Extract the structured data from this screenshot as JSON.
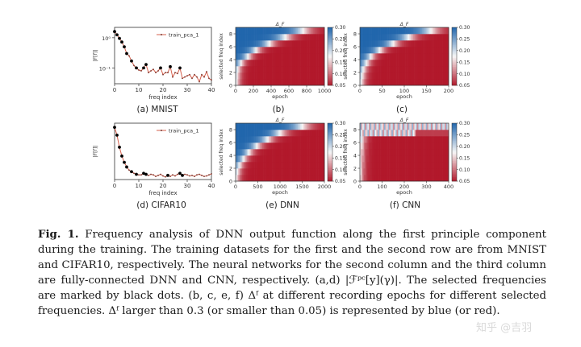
{
  "figure": {
    "colormap": {
      "low": "#b2182b",
      "mid": "#f7f7f7",
      "high": "#2166ac"
    },
    "line_color": "#d6604d",
    "marker_color": "#000000"
  },
  "captions": {
    "a": "(a) MNIST",
    "b": "(b)",
    "c": "(c)",
    "d": "(d) CIFAR10",
    "e": "(e) DNN",
    "f": "(f) CNN"
  },
  "caption_text": {
    "label": "Fig. 1.",
    "body": "Frequency analysis of DNN output function along the first principle component during the training. The training datasets for the first and the second row are from MNIST and CIFAR10, respectively. The neural networks for the second column and the third column are fully-connected DNN and CNN, respectively. (a,d) |ℱᵖᶜ[y](γ)|. The selected frequencies are marked by black dots. (b, c, e, f) Δᶠ at different recording epochs for different selected frequencies. Δᶠ larger than 0.3 (or smaller than 0.05) is represented by blue (or red)."
  },
  "watermark": "知乎 @吉羽",
  "chart_data": [
    {
      "id": "a",
      "type": "line",
      "xlabel": "freq index",
      "ylabel": "|F[f]|",
      "xlim": [
        0,
        40
      ],
      "xticks": [
        "0",
        "10",
        "20",
        "30",
        "40"
      ],
      "yscale": "log",
      "yticks": [
        "10⁰",
        "10⁻¹"
      ],
      "legend": "train_pca_1",
      "legend_position": "top-right",
      "x": [
        0,
        1,
        2,
        3,
        4,
        5,
        6,
        7,
        8,
        9,
        10,
        11,
        12,
        13,
        14,
        15,
        16,
        17,
        18,
        19,
        20,
        21,
        22,
        23,
        24,
        25,
        26,
        27,
        28,
        29,
        30,
        31,
        32,
        33,
        34,
        35,
        36,
        37,
        38,
        39,
        40
      ],
      "series": [
        {
          "name": "train_pca_1",
          "values": [
            1.6,
            1.25,
            0.95,
            0.72,
            0.5,
            0.3,
            0.25,
            0.17,
            0.12,
            0.1,
            0.085,
            0.08,
            0.1,
            0.13,
            0.07,
            0.08,
            0.09,
            0.07,
            0.08,
            0.1,
            0.06,
            0.07,
            0.07,
            0.11,
            0.05,
            0.07,
            0.065,
            0.1,
            0.045,
            0.05,
            0.055,
            0.06,
            0.045,
            0.06,
            0.05,
            0.035,
            0.06,
            0.05,
            0.075,
            0.045,
            0.04
          ]
        }
      ],
      "marked_x": [
        0,
        1,
        2,
        3,
        4,
        5,
        7,
        9,
        12,
        13,
        19,
        23,
        27
      ]
    },
    {
      "id": "b",
      "type": "heatmap",
      "title": "Δ_F",
      "xlabel": "epoch",
      "ylabel": "selected freq index",
      "xticks": [
        "0",
        "200",
        "400",
        "600",
        "800",
        "1000"
      ],
      "xlim": [
        0,
        1000
      ],
      "yticks": [
        "0",
        "2",
        "4",
        "6",
        "8"
      ],
      "ylim": [
        0,
        9
      ],
      "colorbar_ticks": [
        "0.05",
        "0.10",
        "0.15",
        "0.20",
        "0.25",
        "0.30"
      ],
      "clim": [
        0.05,
        0.3
      ],
      "rows": 9,
      "transition_epoch": [
        10,
        15,
        25,
        60,
        140,
        230,
        380,
        560,
        760
      ]
    },
    {
      "id": "c",
      "type": "heatmap",
      "title": "Δ_F",
      "xlabel": "epoch",
      "ylabel": "selected freq index",
      "xticks": [
        "0",
        "50",
        "100",
        "150",
        "200"
      ],
      "xlim": [
        0,
        200
      ],
      "yticks": [
        "0",
        "2",
        "4",
        "6",
        "8"
      ],
      "ylim": [
        0,
        9
      ],
      "colorbar_ticks": [
        "0.05",
        "0.10",
        "0.15",
        "0.20",
        "0.25",
        "0.30"
      ],
      "clim": [
        0.05,
        0.3
      ],
      "rows": 9,
      "transition_epoch": [
        3,
        5,
        8,
        15,
        25,
        45,
        75,
        110,
        160
      ]
    },
    {
      "id": "d",
      "type": "line",
      "xlabel": "freq index",
      "ylabel": "|F[f]|",
      "xlim": [
        0,
        40
      ],
      "xticks": [
        "0",
        "10",
        "20",
        "30",
        "40"
      ],
      "yscale": "linear",
      "legend": "train_pca_1",
      "legend_position": "top-right",
      "x": [
        0,
        1,
        2,
        3,
        4,
        5,
        6,
        7,
        8,
        9,
        10,
        11,
        12,
        13,
        14,
        15,
        16,
        17,
        18,
        19,
        20,
        21,
        22,
        23,
        24,
        25,
        26,
        27,
        28,
        29,
        30,
        31,
        32,
        33,
        34,
        35,
        36,
        37,
        38,
        39,
        40
      ],
      "series": [
        {
          "name": "train_pca_1",
          "values": [
            1.0,
            0.85,
            0.62,
            0.45,
            0.33,
            0.24,
            0.18,
            0.15,
            0.12,
            0.1,
            0.09,
            0.09,
            0.12,
            0.1,
            0.08,
            0.1,
            0.09,
            0.06,
            0.08,
            0.1,
            0.07,
            0.05,
            0.08,
            0.06,
            0.09,
            0.07,
            0.1,
            0.12,
            0.08,
            0.1,
            0.09,
            0.07,
            0.08,
            0.06,
            0.09,
            0.1,
            0.08,
            0.06,
            0.07,
            0.09,
            0.11
          ]
        }
      ],
      "marked_x": [
        0,
        1,
        2,
        3,
        4,
        5,
        7,
        9,
        12,
        13,
        22,
        27,
        28
      ]
    },
    {
      "id": "e",
      "type": "heatmap",
      "title": "Δ_F",
      "xlabel": "epoch",
      "ylabel": "selected freq index",
      "xticks": [
        "0",
        "500",
        "1000",
        "1500",
        "2000"
      ],
      "xlim": [
        0,
        2000
      ],
      "yticks": [
        "0",
        "2",
        "4",
        "6",
        "8"
      ],
      "ylim": [
        0,
        9
      ],
      "colorbar_ticks": [
        "0.05",
        "0.10",
        "0.15",
        "0.20",
        "0.25",
        "0.30"
      ],
      "clim": [
        0.05,
        0.3
      ],
      "rows": 9,
      "transition_epoch": [
        15,
        40,
        90,
        180,
        300,
        480,
        720,
        1000,
        1500
      ]
    },
    {
      "id": "f",
      "type": "heatmap",
      "title": "Δ_F",
      "xlabel": "epoch",
      "ylabel": "selected freq index",
      "xticks": [
        "0",
        "100",
        "200",
        "300",
        "400"
      ],
      "xlim": [
        0,
        400
      ],
      "yticks": [
        "0",
        "2",
        "4",
        "6",
        "8"
      ],
      "ylim": [
        0,
        9
      ],
      "colorbar_ticks": [
        "0.05",
        "0.10",
        "0.15",
        "0.20",
        "0.25",
        "0.30"
      ],
      "clim": [
        0.05,
        0.3
      ],
      "rows": 9,
      "transition_epoch": [
        2,
        3,
        4,
        5,
        6,
        8,
        12,
        250,
        400
      ]
    }
  ]
}
